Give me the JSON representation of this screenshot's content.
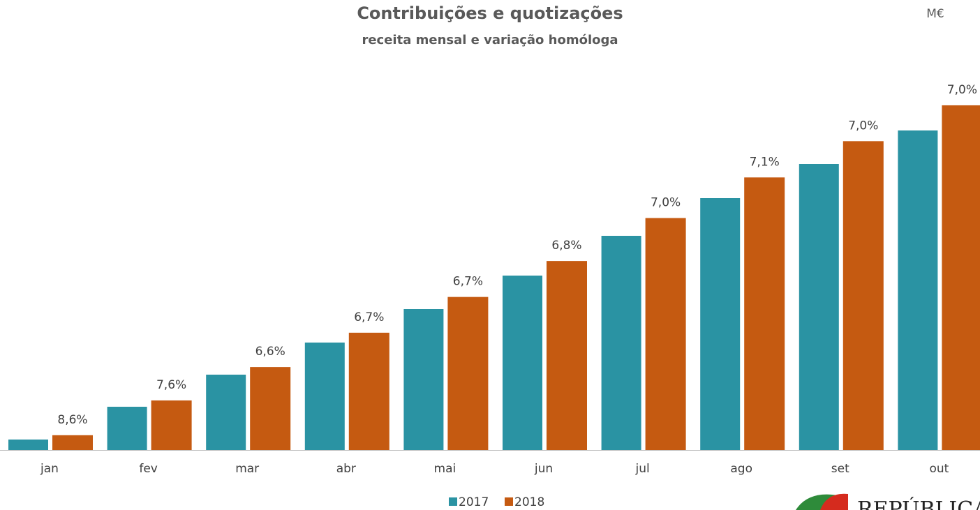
{
  "chart_data": {
    "type": "bar",
    "title": "Contribuições e quotizações",
    "subtitle": "receita mensal e variação homóloga",
    "unit": "M€",
    "categories": [
      "jan",
      "fev",
      "mar",
      "abr",
      "mai",
      "jun",
      "jul",
      "ago",
      "set",
      "out"
    ],
    "series": [
      {
        "name": "2017",
        "color": "#2a93a3",
        "values": [
          1800,
          2975,
          4125,
          5275,
          6475,
          7675,
          9100,
          10450,
          11675,
          12875
        ]
      },
      {
        "name": "2018",
        "color": "#c55a11",
        "values": [
          1955,
          3201,
          4397,
          5628,
          6909,
          8197,
          9737,
          11192,
          12492,
          13776
        ]
      }
    ],
    "variation_labels": [
      "8,6%",
      "7,6%",
      "6,6%",
      "6,7%",
      "6,7%",
      "6,8%",
      "7,0%",
      "7,1%",
      "7,0%",
      "7,0%"
    ],
    "ylim": [
      1425,
      15050
    ],
    "legend": "bottom",
    "logo_text": "REPÚBLICA"
  }
}
